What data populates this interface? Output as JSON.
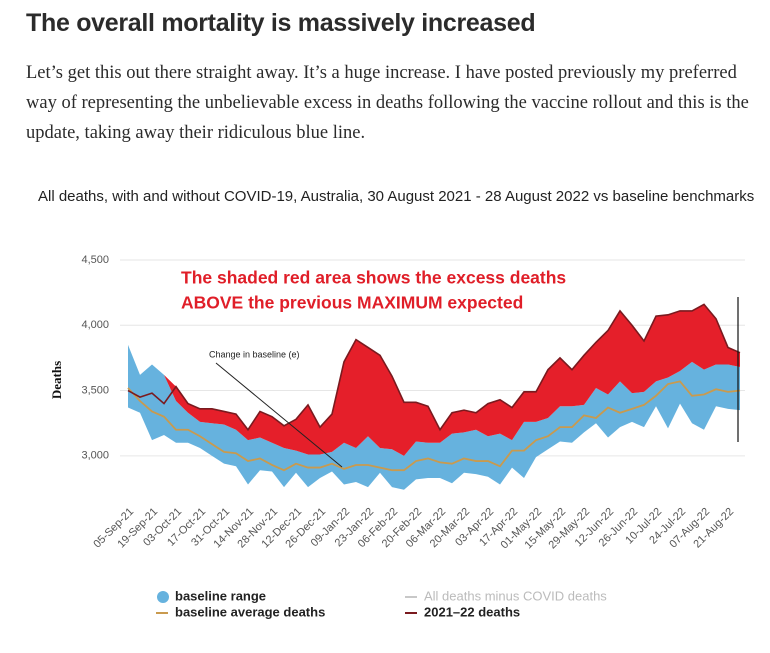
{
  "heading": "The overall mortality is massively increased",
  "paragraph": "Let’s get this out there straight away. It’s a huge increase. I have posted previously my preferred way of representing the unbelievable excess in deaths following the vaccine rollout and this is the update, taking away their ridiculous blue line.",
  "chart_data": {
    "type": "line",
    "title": "All deaths, with and without COVID-19, Australia, 30 August 2021 - 28 August 2022 vs baseline benchmarks",
    "y_label": "Deaths",
    "annotations": [
      "The shaded red area shows the excess deaths",
      "ABOVE the previous MAXIMUM expected",
      "Change in baseline (e)"
    ],
    "categories": [
      "05-Sep-21",
      null,
      "19-Sep-21",
      null,
      "03-Oct-21",
      null,
      "17-Oct-21",
      null,
      "31-Oct-21",
      null,
      "14-Nov-21",
      null,
      "28-Nov-21",
      null,
      "12-Dec-21",
      null,
      "26-Dec-21",
      null,
      "09-Jan-22",
      null,
      "23-Jan-22",
      null,
      "06-Feb-22",
      null,
      "20-Feb-22",
      null,
      "06-Mar-22",
      null,
      "20-Mar-22",
      null,
      "03-Apr-22",
      null,
      "17-Apr-22",
      null,
      "01-May-22",
      null,
      "15-May-22",
      null,
      "29-May-22",
      null,
      "12-Jun-22",
      null,
      "26-Jun-22",
      null,
      "10-Jul-22",
      null,
      "24-Jul-22",
      null,
      "07-Aug-22",
      null,
      "21-Aug-22",
      null
    ],
    "ylim": [
      2700,
      4500
    ],
    "yticks": [
      {
        "value": 3000,
        "label": "3,000"
      },
      {
        "value": 3500,
        "label": "3,500"
      },
      {
        "value": 4000,
        "label": "4,000"
      },
      {
        "value": 4500,
        "label": "4,500"
      }
    ],
    "excess_color": "#e51f2a",
    "series": [
      {
        "name": "baseline range",
        "color": "#66b2de",
        "values": [
          3850,
          3620,
          3700,
          3620,
          3420,
          3330,
          3260,
          3250,
          3240,
          3200,
          3120,
          3140,
          3100,
          3060,
          3040,
          3010,
          3010,
          3030,
          3100,
          3060,
          3150,
          3060,
          3050,
          3000,
          3110,
          3100,
          3100,
          3170,
          3180,
          3200,
          3150,
          3170,
          3120,
          3260,
          3260,
          3290,
          3380,
          3380,
          3390,
          3520,
          3470,
          3570,
          3480,
          3490,
          3570,
          3600,
          3650,
          3720,
          3660,
          3700,
          3700,
          3680
        ],
        "lower": [
          3370,
          3330,
          3120,
          3160,
          3100,
          3100,
          3060,
          3000,
          2940,
          2920,
          2780,
          2890,
          2880,
          2760,
          2870,
          2760,
          2830,
          2880,
          2780,
          2800,
          2760,
          2870,
          2760,
          2740,
          2820,
          2830,
          2830,
          2790,
          2870,
          2860,
          2840,
          2780,
          2910,
          2830,
          2990,
          3050,
          3110,
          3100,
          3180,
          3250,
          3140,
          3220,
          3260,
          3220,
          3380,
          3210,
          3400,
          3250,
          3200,
          3380,
          3360,
          3350
        ]
      },
      {
        "name": "baseline average deaths",
        "color": "#c99a4e",
        "values": [
          3520,
          3420,
          3340,
          3300,
          3200,
          3200,
          3150,
          3090,
          3030,
          3020,
          2960,
          2980,
          2930,
          2890,
          2940,
          2910,
          2910,
          2940,
          2900,
          2930,
          2930,
          2910,
          2890,
          2890,
          2960,
          2980,
          2950,
          2940,
          2980,
          2960,
          2960,
          2920,
          3040,
          3040,
          3120,
          3150,
          3220,
          3220,
          3310,
          3290,
          3370,
          3330,
          3360,
          3390,
          3460,
          3550,
          3570,
          3460,
          3470,
          3510,
          3490,
          3500
        ]
      },
      {
        "name": "2021–22 deaths",
        "color": "#7a1a1f",
        "values": [
          3500,
          3450,
          3480,
          3400,
          3530,
          3400,
          3360,
          3360,
          3340,
          3320,
          3200,
          3340,
          3300,
          3230,
          3280,
          3390,
          3220,
          3320,
          3720,
          3890,
          3830,
          3770,
          3610,
          3410,
          3410,
          3380,
          3200,
          3330,
          3350,
          3330,
          3400,
          3430,
          3370,
          3490,
          3490,
          3660,
          3750,
          3660,
          3770,
          3870,
          3960,
          4110,
          4000,
          3880,
          4070,
          4080,
          4110,
          4110,
          4160,
          4050,
          3830,
          3790
        ]
      },
      {
        "name": "All deaths minus COVID deaths",
        "color": "#c8c8c8",
        "visible": false
      }
    ]
  }
}
